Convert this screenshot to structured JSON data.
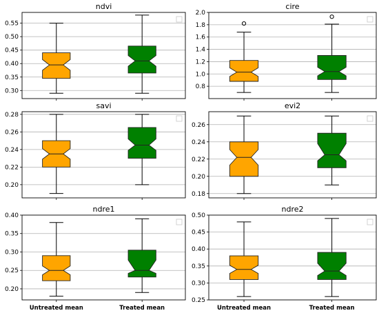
{
  "colors": {
    "untreated": "#FFA500",
    "treated": "#008000",
    "grid": "#b0b0b0",
    "frame": "#000000"
  },
  "chart_data": [
    {
      "type": "boxplot",
      "title": "ndvi",
      "categories": [
        "Untreated mean",
        "Treated mean"
      ],
      "show_category_labels": false,
      "ylim": [
        0.27,
        0.59
      ],
      "yticks": [
        0.3,
        0.35,
        0.4,
        0.45,
        0.5,
        0.55
      ],
      "ytick_labels": [
        "0.30",
        "0.35",
        "0.40",
        "0.45",
        "0.50",
        "0.55"
      ],
      "grid": true,
      "boxes": [
        {
          "name": "Untreated mean",
          "whislo": 0.29,
          "q1": 0.345,
          "med": 0.395,
          "q3": 0.44,
          "whishi": 0.55,
          "notch_lo": 0.375,
          "notch_hi": 0.415,
          "fliers": []
        },
        {
          "name": "Treated mean",
          "whislo": 0.29,
          "q1": 0.365,
          "med": 0.41,
          "q3": 0.465,
          "whishi": 0.58,
          "notch_lo": 0.39,
          "notch_hi": 0.43,
          "fliers": []
        }
      ]
    },
    {
      "type": "boxplot",
      "title": "cire",
      "categories": [
        "Untreated mean",
        "Treated mean"
      ],
      "show_category_labels": false,
      "ylim": [
        0.6,
        2.0
      ],
      "yticks": [
        0.8,
        1.0,
        1.2,
        1.4,
        1.6,
        1.8,
        2.0
      ],
      "ytick_labels": [
        "0.8",
        "1.0",
        "1.2",
        "1.4",
        "1.6",
        "1.8",
        "2.0"
      ],
      "grid": true,
      "boxes": [
        {
          "name": "Untreated mean",
          "whislo": 0.7,
          "q1": 0.88,
          "med": 1.03,
          "q3": 1.22,
          "whishi": 1.68,
          "notch_lo": 0.96,
          "notch_hi": 1.1,
          "fliers": [
            1.82
          ]
        },
        {
          "name": "Treated mean",
          "whislo": 0.7,
          "q1": 0.91,
          "med": 1.04,
          "q3": 1.3,
          "whishi": 1.81,
          "notch_lo": 0.97,
          "notch_hi": 1.11,
          "fliers": [
            1.93
          ]
        }
      ]
    },
    {
      "type": "boxplot",
      "title": "savi",
      "categories": [
        "Untreated mean",
        "Treated mean"
      ],
      "show_category_labels": false,
      "ylim": [
        0.185,
        0.283
      ],
      "yticks": [
        0.2,
        0.22,
        0.24,
        0.26,
        0.28
      ],
      "ytick_labels": [
        "0.20",
        "0.22",
        "0.24",
        "0.26",
        "0.28"
      ],
      "grid": true,
      "boxes": [
        {
          "name": "Untreated mean",
          "whislo": 0.19,
          "q1": 0.22,
          "med": 0.235,
          "q3": 0.25,
          "whishi": 0.28,
          "notch_lo": 0.229,
          "notch_hi": 0.241,
          "fliers": []
        },
        {
          "name": "Treated mean",
          "whislo": 0.2,
          "q1": 0.23,
          "med": 0.245,
          "q3": 0.265,
          "whishi": 0.28,
          "notch_lo": 0.239,
          "notch_hi": 0.252,
          "fliers": []
        }
      ]
    },
    {
      "type": "boxplot",
      "title": "evi2",
      "categories": [
        "Untreated mean",
        "Treated mean"
      ],
      "show_category_labels": false,
      "ylim": [
        0.175,
        0.275
      ],
      "yticks": [
        0.18,
        0.2,
        0.22,
        0.24,
        0.26
      ],
      "ytick_labels": [
        "0.18",
        "0.20",
        "0.22",
        "0.24",
        "0.26"
      ],
      "grid": true,
      "boxes": [
        {
          "name": "Untreated mean",
          "whislo": 0.18,
          "q1": 0.2,
          "med": 0.222,
          "q3": 0.24,
          "whishi": 0.27,
          "notch_lo": 0.213,
          "notch_hi": 0.231,
          "fliers": []
        },
        {
          "name": "Treated mean",
          "whislo": 0.19,
          "q1": 0.21,
          "med": 0.225,
          "q3": 0.25,
          "whishi": 0.27,
          "notch_lo": 0.218,
          "notch_hi": 0.238,
          "fliers": []
        }
      ]
    },
    {
      "type": "boxplot",
      "title": "ndre1",
      "categories": [
        "Untreated mean",
        "Treated mean"
      ],
      "show_category_labels": true,
      "ylim": [
        0.17,
        0.4
      ],
      "yticks": [
        0.2,
        0.25,
        0.3,
        0.35,
        0.4
      ],
      "ytick_labels": [
        "0.20",
        "0.25",
        "0.30",
        "0.35",
        "0.40"
      ],
      "grid": true,
      "boxes": [
        {
          "name": "Untreated mean",
          "whislo": 0.18,
          "q1": 0.222,
          "med": 0.25,
          "q3": 0.29,
          "whishi": 0.38,
          "notch_lo": 0.238,
          "notch_hi": 0.262,
          "fliers": []
        },
        {
          "name": "Treated mean",
          "whislo": 0.19,
          "q1": 0.232,
          "med": 0.25,
          "q3": 0.305,
          "whishi": 0.39,
          "notch_lo": 0.242,
          "notch_hi": 0.278,
          "fliers": []
        }
      ]
    },
    {
      "type": "boxplot",
      "title": "ndre2",
      "categories": [
        "Untreated mean",
        "Treated mean"
      ],
      "show_category_labels": true,
      "ylim": [
        0.25,
        0.5
      ],
      "yticks": [
        0.25,
        0.3,
        0.35,
        0.4,
        0.45,
        0.5
      ],
      "ytick_labels": [
        "0.25",
        "0.30",
        "0.35",
        "0.40",
        "0.45",
        "0.50"
      ],
      "grid": true,
      "boxes": [
        {
          "name": "Untreated mean",
          "whislo": 0.26,
          "q1": 0.31,
          "med": 0.34,
          "q3": 0.38,
          "whishi": 0.48,
          "notch_lo": 0.328,
          "notch_hi": 0.352,
          "fliers": []
        },
        {
          "name": "Treated mean",
          "whislo": 0.26,
          "q1": 0.31,
          "med": 0.335,
          "q3": 0.39,
          "whishi": 0.49,
          "notch_lo": 0.322,
          "notch_hi": 0.358,
          "fliers": []
        }
      ]
    }
  ]
}
